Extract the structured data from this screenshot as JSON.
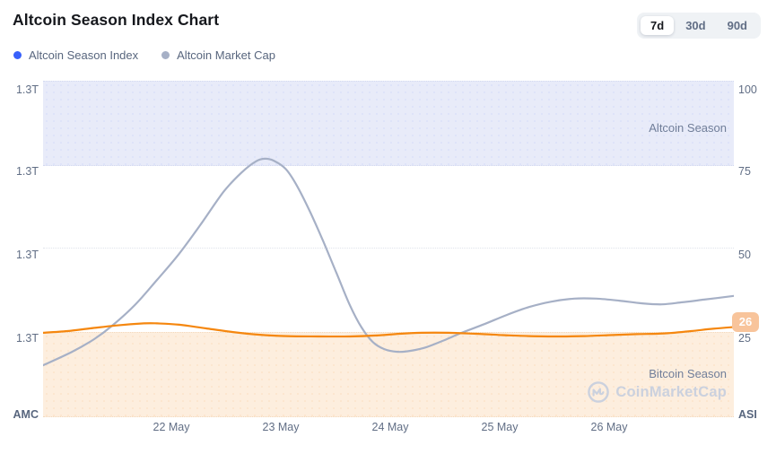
{
  "header": {
    "title": "Altcoin Season Index Chart",
    "ranges": [
      {
        "label": "7d",
        "active": true
      },
      {
        "label": "30d",
        "active": false
      },
      {
        "label": "90d",
        "active": false
      }
    ]
  },
  "legend": [
    {
      "label": "Altcoin Season Index",
      "color": "#3861fb"
    },
    {
      "label": "Altcoin Market Cap",
      "color": "#a6b0c6"
    }
  ],
  "chart_data": {
    "type": "line",
    "title": "Altcoin Season Index Chart",
    "x_ticks": [
      "22 May",
      "23 May",
      "24 May",
      "25 May",
      "26 May"
    ],
    "left_axis": {
      "ticks": [
        "1.3T",
        "1.3T",
        "1.3T",
        "1.3T"
      ],
      "corner_label": "AMC"
    },
    "right_axis": {
      "ticks": [
        "100",
        "75",
        "50",
        "25"
      ],
      "corner_label": "ASI",
      "range": [
        0,
        100
      ]
    },
    "regions": [
      {
        "label": "Altcoin Season",
        "from": 75,
        "to": 100,
        "color": "#e8ebf9"
      },
      {
        "label": "Bitcoin Season",
        "from": 0,
        "to": 25,
        "color": "#fdeede"
      }
    ],
    "grid": "dotted horizontal at 25/50/75/100",
    "legend_position": "top-left",
    "current_badge": {
      "value": "26",
      "color": "#f8c49b"
    },
    "watermark": "CoinMarketCap",
    "series": [
      {
        "name": "Altcoin Season Index",
        "axis": "right",
        "color": "#f5870f",
        "points": [
          [
            0,
            24.7
          ],
          [
            0.035,
            25.2
          ],
          [
            0.068,
            26.0
          ],
          [
            0.107,
            26.9
          ],
          [
            0.146,
            27.5
          ],
          [
            0.165,
            27.5
          ],
          [
            0.197,
            27.1
          ],
          [
            0.236,
            26.0
          ],
          [
            0.275,
            24.9
          ],
          [
            0.314,
            24.1
          ],
          [
            0.353,
            23.7
          ],
          [
            0.399,
            23.6
          ],
          [
            0.444,
            23.6
          ],
          [
            0.483,
            23.9
          ],
          [
            0.516,
            24.4
          ],
          [
            0.548,
            24.7
          ],
          [
            0.587,
            24.7
          ],
          [
            0.626,
            24.4
          ],
          [
            0.665,
            24.0
          ],
          [
            0.704,
            23.7
          ],
          [
            0.743,
            23.6
          ],
          [
            0.782,
            23.7
          ],
          [
            0.821,
            24.0
          ],
          [
            0.86,
            24.3
          ],
          [
            0.899,
            24.5
          ],
          [
            0.938,
            25.2
          ],
          [
            0.97,
            25.9
          ],
          [
            1,
            26.4
          ]
        ]
      },
      {
        "name": "Altcoin Market Cap",
        "axis": "left",
        "color": "#a6b0c6",
        "points": [
          [
            0,
            15.0
          ],
          [
            0.042,
            19.0
          ],
          [
            0.074,
            22.8
          ],
          [
            0.1,
            26.8
          ],
          [
            0.133,
            33.0
          ],
          [
            0.165,
            40.5
          ],
          [
            0.197,
            48.3
          ],
          [
            0.23,
            57.6
          ],
          [
            0.262,
            67.0
          ],
          [
            0.288,
            72.7
          ],
          [
            0.308,
            75.9
          ],
          [
            0.321,
            76.7
          ],
          [
            0.334,
            76.1
          ],
          [
            0.351,
            73.7
          ],
          [
            0.366,
            69.2
          ],
          [
            0.386,
            61.1
          ],
          [
            0.405,
            52.3
          ],
          [
            0.425,
            42.4
          ],
          [
            0.444,
            33.0
          ],
          [
            0.461,
            26.3
          ],
          [
            0.477,
            22.0
          ],
          [
            0.494,
            19.8
          ],
          [
            0.513,
            19.0
          ],
          [
            0.532,
            19.3
          ],
          [
            0.555,
            20.4
          ],
          [
            0.581,
            22.5
          ],
          [
            0.606,
            24.7
          ],
          [
            0.639,
            27.3
          ],
          [
            0.671,
            30.0
          ],
          [
            0.704,
            32.4
          ],
          [
            0.736,
            34.0
          ],
          [
            0.769,
            34.9
          ],
          [
            0.801,
            34.9
          ],
          [
            0.834,
            34.3
          ],
          [
            0.866,
            33.5
          ],
          [
            0.896,
            33.2
          ],
          [
            0.925,
            33.8
          ],
          [
            0.957,
            34.6
          ],
          [
            1,
            35.7
          ]
        ]
      }
    ]
  }
}
